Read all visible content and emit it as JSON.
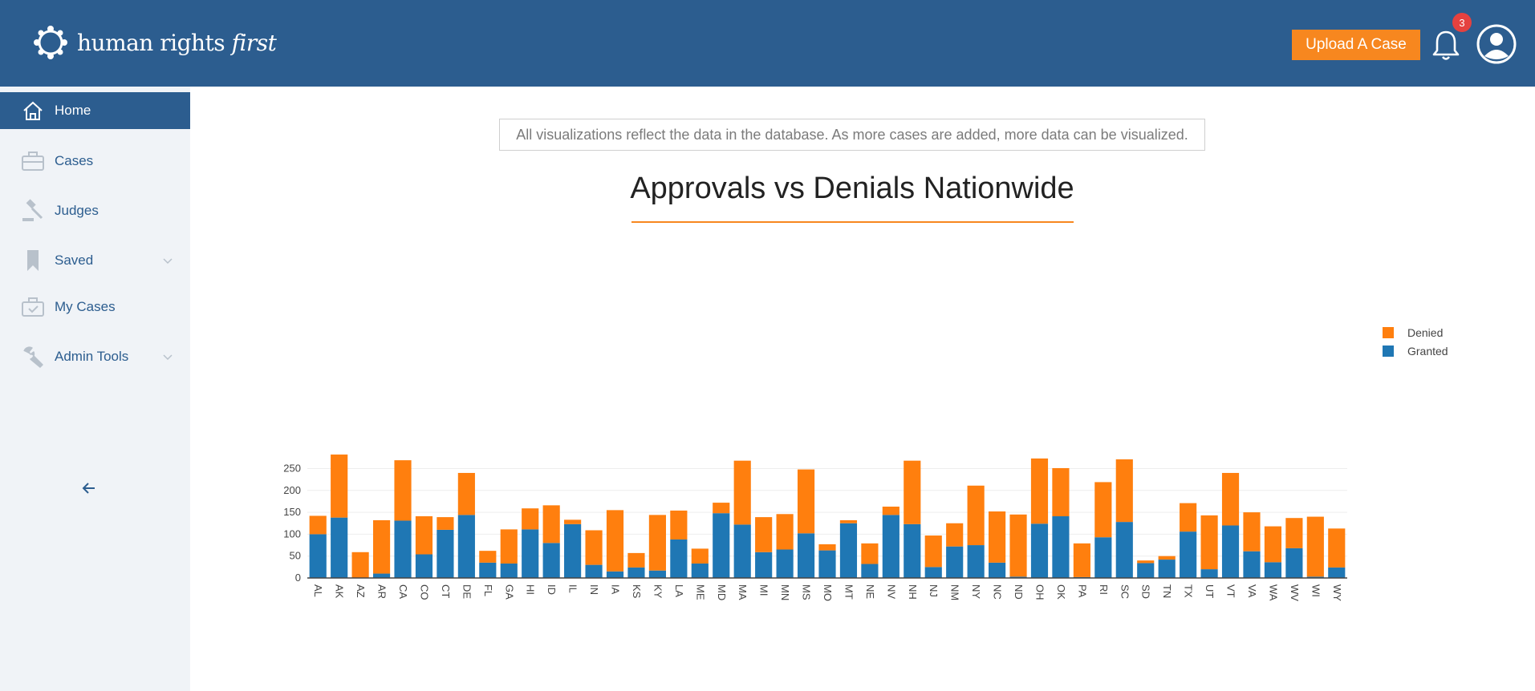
{
  "header": {
    "logo_text_main": "human rights",
    "logo_text_em": "first",
    "upload_button": "Upload A Case",
    "notification_count": "3"
  },
  "sidebar": {
    "items": [
      {
        "label": "Home",
        "icon": "home-icon",
        "active": true
      },
      {
        "label": "Cases",
        "icon": "briefcase-icon"
      },
      {
        "label": "Judges",
        "icon": "gavel-icon"
      },
      {
        "label": "Saved",
        "icon": "bookmark-icon",
        "expandable": true
      },
      {
        "label": "My Cases",
        "icon": "briefcase-check-icon"
      },
      {
        "label": "Admin Tools",
        "icon": "wrench-icon",
        "expandable": true
      }
    ]
  },
  "main": {
    "notice": "All visualizations reflect the data in the database. As more cases are added, more data can be visualized.",
    "title": "Approvals vs Denials Nationwide"
  },
  "colors": {
    "brand": "#2c5d8f",
    "accent": "#f7871f",
    "granted": "#1f77b4",
    "denied": "#ff7f0e"
  },
  "chart_data": {
    "type": "bar",
    "stacked": true,
    "categories": [
      "AL",
      "AK",
      "AZ",
      "AR",
      "CA",
      "CO",
      "CT",
      "DE",
      "FL",
      "GA",
      "HI",
      "ID",
      "IL",
      "IN",
      "IA",
      "KS",
      "KY",
      "LA",
      "ME",
      "MD",
      "MA",
      "MI",
      "MN",
      "MS",
      "MO",
      "MT",
      "NE",
      "NV",
      "NH",
      "NJ",
      "NM",
      "NY",
      "NC",
      "ND",
      "OH",
      "OK",
      "PA",
      "RI",
      "SC",
      "SD",
      "TN",
      "TX",
      "UT",
      "VT",
      "VA",
      "WA",
      "WV",
      "WI",
      "WY"
    ],
    "series": [
      {
        "name": "Granted",
        "values": [
          100,
          138,
          0,
          10,
          131,
          54,
          110,
          144,
          35,
          33,
          111,
          80,
          123,
          30,
          15,
          24,
          17,
          88,
          33,
          148,
          122,
          59,
          65,
          102,
          63,
          125,
          32,
          144,
          123,
          25,
          72,
          75,
          35,
          3,
          124,
          141,
          2,
          93,
          128,
          34,
          42,
          106,
          20,
          120,
          61,
          36,
          68,
          3,
          24
        ]
      },
      {
        "name": "Denied",
        "values": [
          42,
          144,
          59,
          122,
          138,
          87,
          29,
          96,
          27,
          78,
          48,
          86,
          10,
          79,
          140,
          33,
          127,
          66,
          34,
          24,
          146,
          80,
          81,
          146,
          14,
          7,
          47,
          19,
          145,
          72,
          53,
          136,
          117,
          142,
          149,
          110,
          77,
          126,
          143,
          6,
          8,
          65,
          123,
          120,
          89,
          82,
          69,
          137,
          89
        ]
      }
    ],
    "ylim": [
      0,
      290
    ],
    "yticks": [
      0,
      50,
      100,
      150,
      200,
      250
    ],
    "legend": [
      "Denied",
      "Granted"
    ],
    "legend_position": "top-right",
    "grid": true
  }
}
